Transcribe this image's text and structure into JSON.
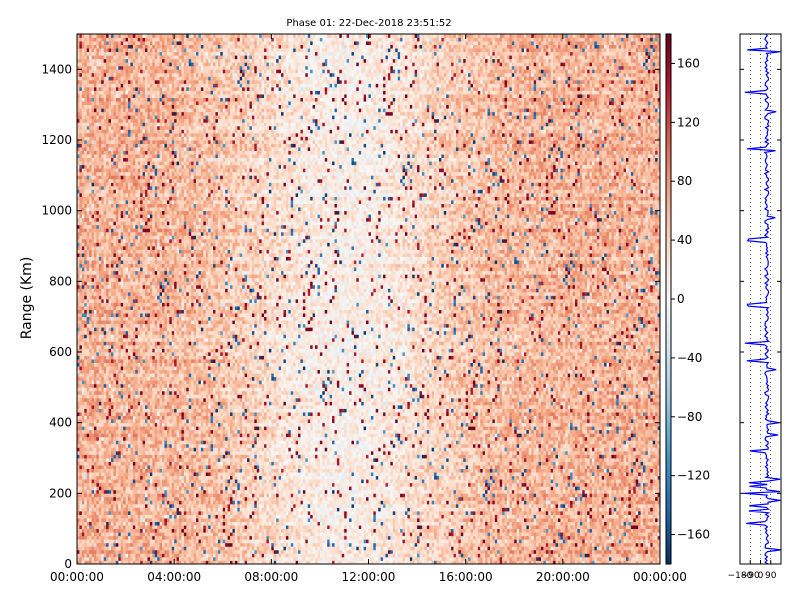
{
  "chart_data": [
    {
      "type": "heatmap",
      "title": "Phase 01: 22-Dec-2018 23:51:52",
      "xlabel": "",
      "ylabel": "Range (Km)",
      "x_tick_labels": [
        "00:00:00",
        "04:00:00",
        "08:00:00",
        "12:00:00",
        "16:00:00",
        "20:00:00",
        "00:00:00"
      ],
      "xlim": [
        "00:00:00",
        "00:00:00"
      ],
      "ylim": [
        0,
        1500
      ],
      "y_ticks": [
        0,
        200,
        400,
        600,
        800,
        1000,
        1200,
        1400
      ],
      "colorbar": {
        "range": [
          -180,
          180
        ],
        "ticks": [
          -160,
          -120,
          -80,
          -40,
          0,
          40,
          80,
          120,
          160
        ],
        "colormap": "RdBu_r"
      },
      "grid": false,
      "note_values": "phase field; typical values near +60 with noise, lower near mid-day columns"
    },
    {
      "type": "line",
      "orientation": "vertical-profile",
      "x_ticks": [
        -180,
        -90,
        0,
        90
      ],
      "x_tick_labels": [
        "-180",
        "-90",
        "0",
        "90"
      ],
      "xlim": [
        -180,
        180
      ],
      "ylim": [
        0,
        1500
      ],
      "series_color": "#0000ff",
      "grid": true,
      "grid_style": "dotted"
    }
  ],
  "colors": {
    "line": "#0000ff",
    "axes": "#000000"
  }
}
